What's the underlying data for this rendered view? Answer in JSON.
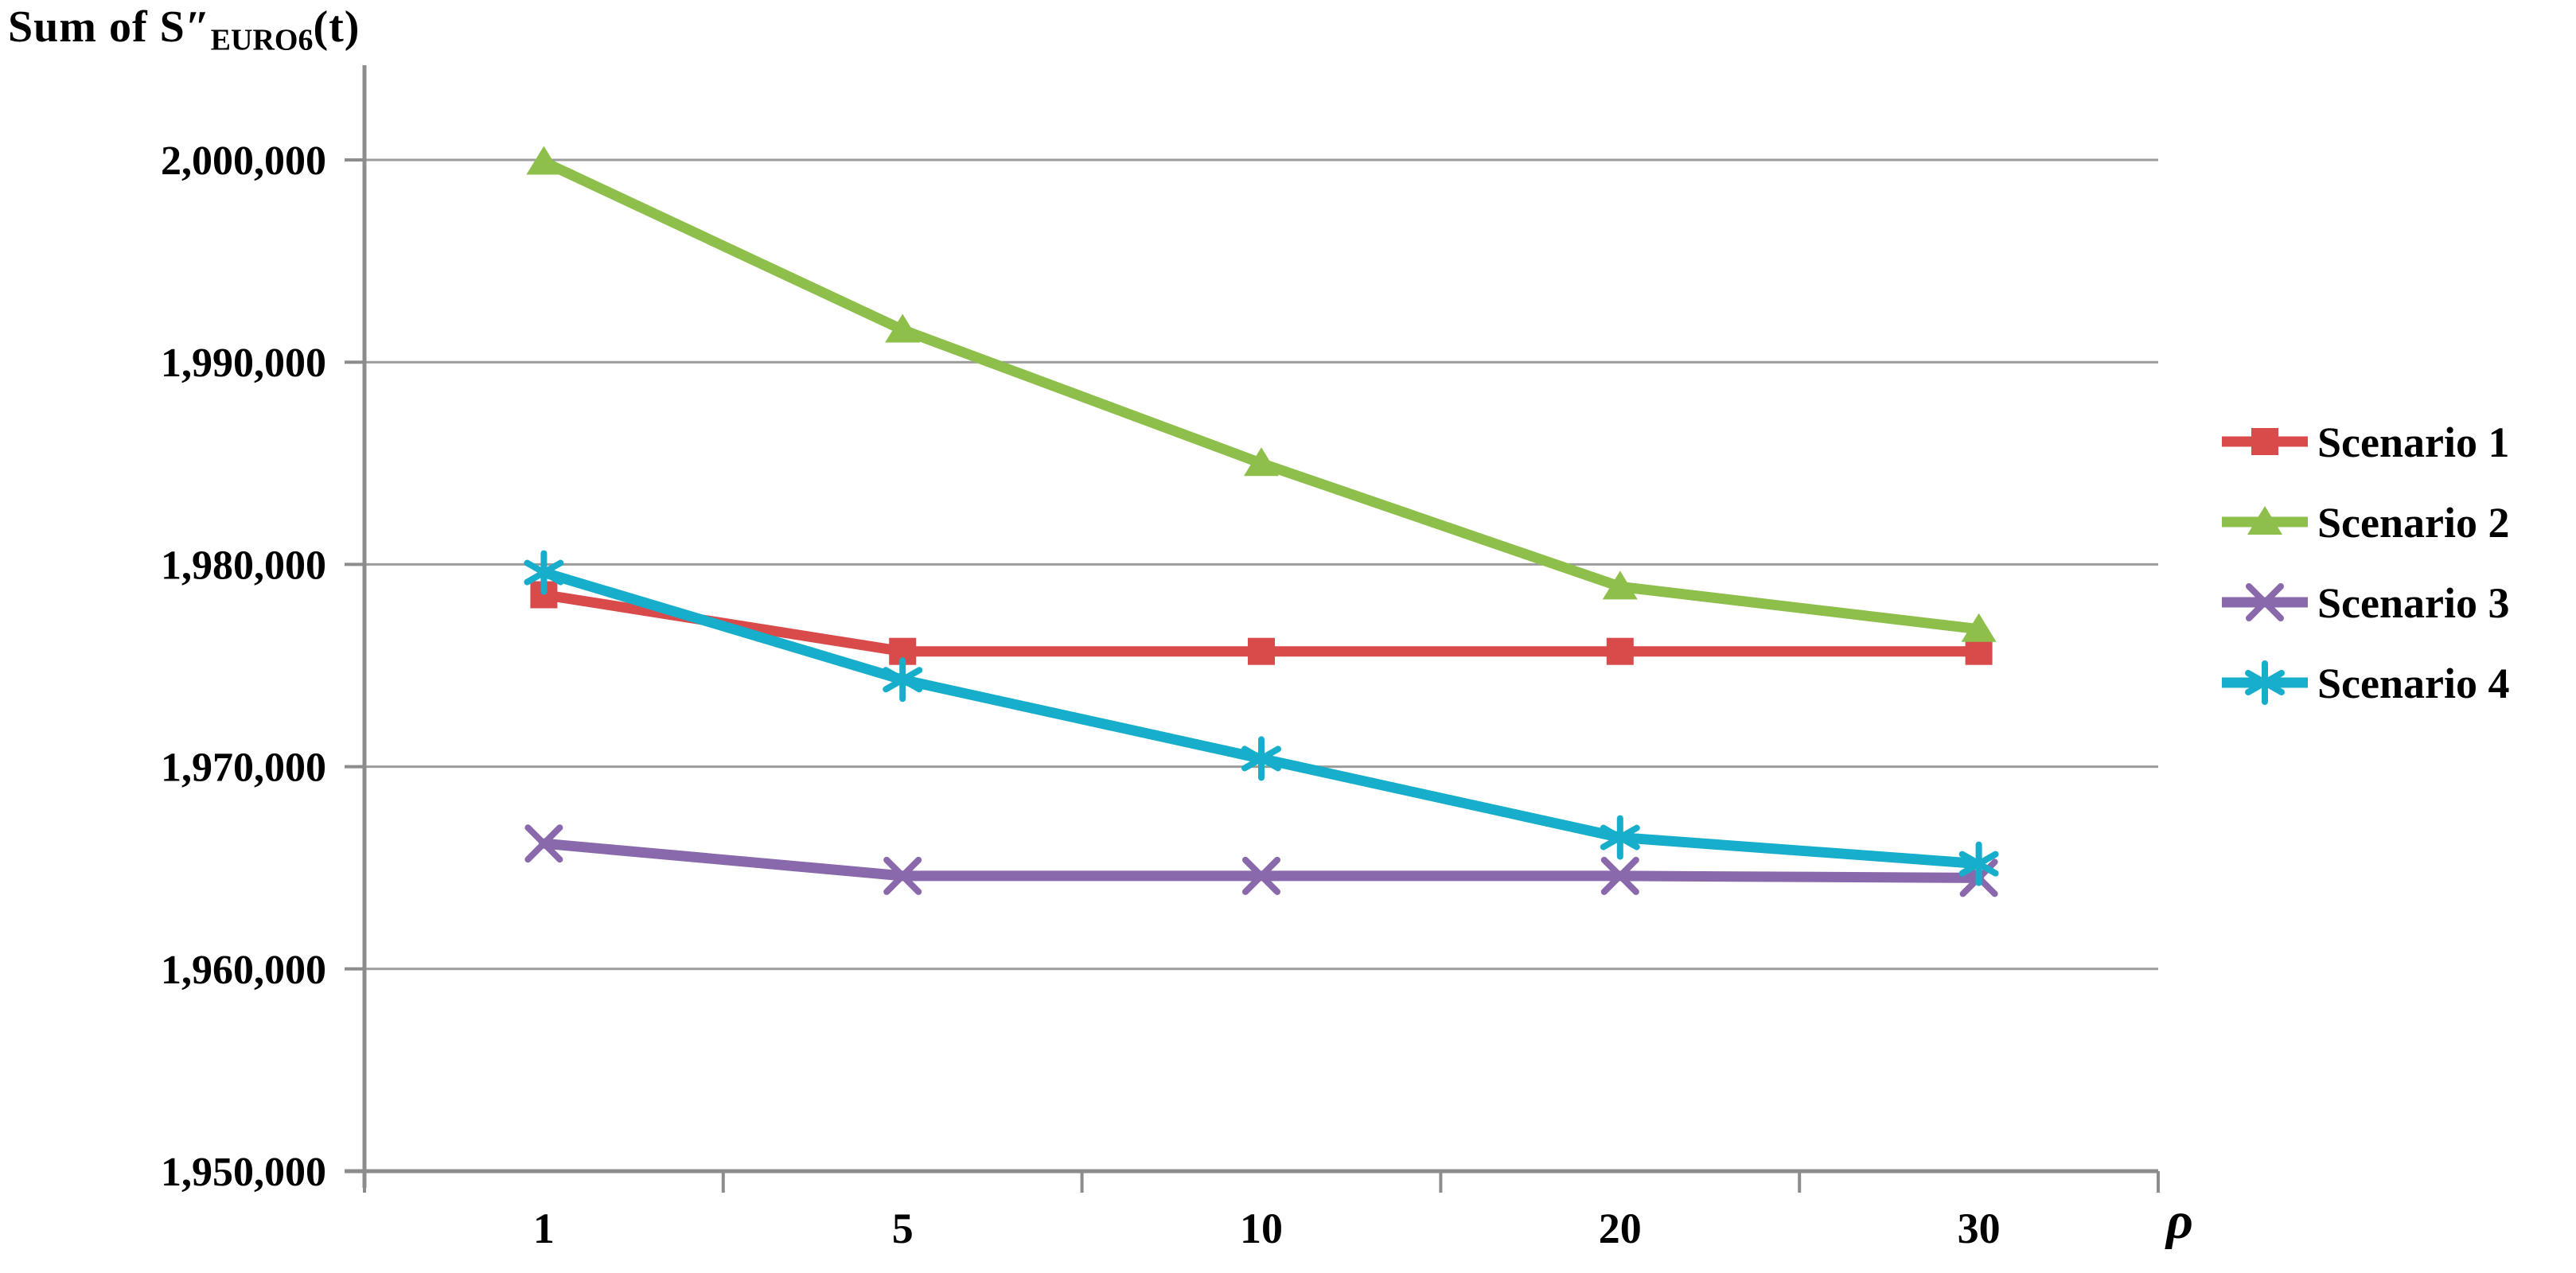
{
  "title": {
    "prefix": "Sum of S″",
    "subscript": "EURO6",
    "suffix": "(t)"
  },
  "x_axis": {
    "symbol": "ρ",
    "tick_labels": [
      "1",
      "5",
      "10",
      "20",
      "30"
    ]
  },
  "y_axis": {
    "tick_labels": [
      "2,000,000",
      "1,990,000",
      "1,980,000",
      "1,970,000",
      "1,960,000",
      "1,950,000"
    ]
  },
  "legend": {
    "entries": [
      "Scenario 1",
      "Scenario 2",
      "Scenario 3",
      "Scenario 4"
    ]
  },
  "colors": {
    "scenario1": "#D94A4A",
    "scenario2": "#8DBF4A",
    "scenario3": "#8A68AC",
    "scenario4": "#17AECB",
    "gridline": "#9B9B9B",
    "axis": "#8C8C8C",
    "text": "#000000",
    "background": "#FFFFFF"
  },
  "chart_data": {
    "type": "line",
    "title": "Sum of S″EURO6(t)",
    "xlabel": "ρ",
    "ylabel": "Sum of S″EURO6(t)",
    "categories": [
      1,
      5,
      10,
      20,
      30
    ],
    "series": [
      {
        "name": "Scenario 1",
        "marker": "square",
        "color": "#D94A4A",
        "values": [
          1978500,
          1975700,
          1975700,
          1975700,
          1975700
        ]
      },
      {
        "name": "Scenario 2",
        "marker": "triangle",
        "color": "#8DBF4A",
        "values": [
          1999900,
          1991600,
          1985000,
          1978900,
          1976800
        ]
      },
      {
        "name": "Scenario 3",
        "marker": "x",
        "color": "#8A68AC",
        "values": [
          1966200,
          1964600,
          1964600,
          1964600,
          1964500
        ]
      },
      {
        "name": "Scenario 4",
        "marker": "asterisk",
        "color": "#17AECB",
        "values": [
          1979600,
          1974300,
          1970400,
          1966500,
          1965200
        ]
      }
    ],
    "ylim": [
      1950000,
      2000000
    ],
    "y_tick_step": 10000,
    "grid": true,
    "legend_position": "right"
  }
}
